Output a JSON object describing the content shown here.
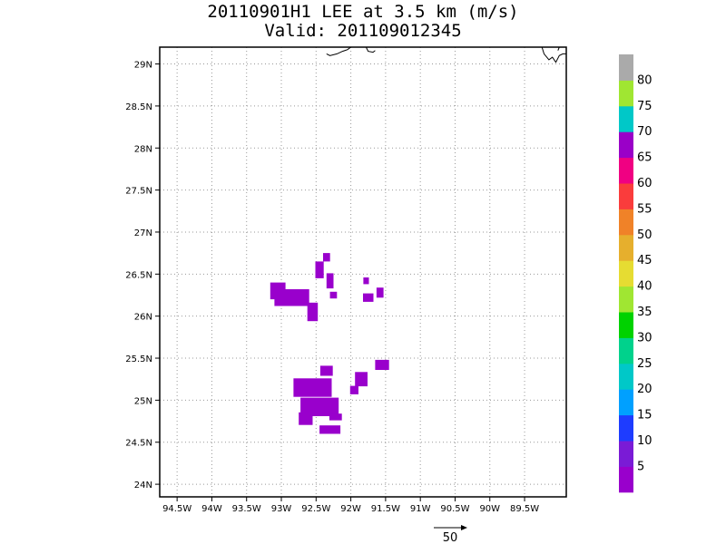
{
  "title": "20110901H1 LEE at 3.5 km (m/s)",
  "subtitle": "Valid: 201109012345",
  "map": {
    "lon_range": [
      -94.75,
      -88.9
    ],
    "lat_range": [
      23.85,
      29.2
    ],
    "x_ticks": [
      {
        "lon": -94.5,
        "label": "94.5W"
      },
      {
        "lon": -94,
        "label": "94W"
      },
      {
        "lon": -93.5,
        "label": "93.5W"
      },
      {
        "lon": -93,
        "label": "93W"
      },
      {
        "lon": -92.5,
        "label": "92.5W"
      },
      {
        "lon": -92,
        "label": "92W"
      },
      {
        "lon": -91.5,
        "label": "91.5W"
      },
      {
        "lon": -91,
        "label": "91W"
      },
      {
        "lon": -90.5,
        "label": "90.5W"
      },
      {
        "lon": -90,
        "label": "90W"
      },
      {
        "lon": -89.5,
        "label": "89.5W"
      }
    ],
    "y_ticks": [
      {
        "lat": 24,
        "label": "24N"
      },
      {
        "lat": 24.5,
        "label": "24.5N"
      },
      {
        "lat": 25,
        "label": "25N"
      },
      {
        "lat": 25.5,
        "label": "25.5N"
      },
      {
        "lat": 26,
        "label": "26N"
      },
      {
        "lat": 26.5,
        "label": "26.5N"
      },
      {
        "lat": 27,
        "label": "27N"
      },
      {
        "lat": 27.5,
        "label": "27.5N"
      },
      {
        "lat": 28,
        "label": "28N"
      },
      {
        "lat": 28.5,
        "label": "28.5N"
      },
      {
        "lat": 29,
        "label": "29N"
      }
    ],
    "grid": true,
    "coastline": [
      [
        [
          -92.0,
          29.2
        ],
        [
          -92.05,
          29.17
        ],
        [
          -92.12,
          29.15
        ],
        [
          -92.2,
          29.12
        ],
        [
          -92.3,
          29.1
        ],
        [
          -92.35,
          29.12
        ]
      ],
      [
        [
          -91.78,
          29.2
        ],
        [
          -91.75,
          29.15
        ],
        [
          -91.68,
          29.14
        ],
        [
          -91.65,
          29.16
        ]
      ],
      [
        [
          -89.25,
          29.2
        ],
        [
          -89.22,
          29.12
        ],
        [
          -89.15,
          29.05
        ],
        [
          -89.1,
          29.08
        ],
        [
          -89.05,
          29.02
        ],
        [
          -89.0,
          29.1
        ],
        [
          -88.95,
          29.12
        ],
        [
          -88.9,
          29.12
        ]
      ],
      [
        [
          -89.02,
          29.16
        ],
        [
          -89.0,
          29.2
        ]
      ]
    ],
    "wind_color": "#9900cc",
    "wind_regions": [
      {
        "lon": -93.05,
        "lat": 26.3,
        "w": 0.22,
        "h": 0.2
      },
      {
        "lon": -92.85,
        "lat": 26.22,
        "w": 0.5,
        "h": 0.2
      },
      {
        "lon": -92.55,
        "lat": 26.05,
        "w": 0.15,
        "h": 0.22
      },
      {
        "lon": -92.45,
        "lat": 26.55,
        "w": 0.12,
        "h": 0.2
      },
      {
        "lon": -92.3,
        "lat": 26.42,
        "w": 0.1,
        "h": 0.18
      },
      {
        "lon": -92.35,
        "lat": 26.7,
        "w": 0.1,
        "h": 0.1
      },
      {
        "lon": -92.25,
        "lat": 26.25,
        "w": 0.1,
        "h": 0.08
      },
      {
        "lon": -91.78,
        "lat": 26.42,
        "w": 0.08,
        "h": 0.08
      },
      {
        "lon": -91.75,
        "lat": 26.22,
        "w": 0.15,
        "h": 0.1
      },
      {
        "lon": -91.58,
        "lat": 26.28,
        "w": 0.1,
        "h": 0.12
      },
      {
        "lon": -92.35,
        "lat": 25.35,
        "w": 0.18,
        "h": 0.12
      },
      {
        "lon": -92.55,
        "lat": 25.15,
        "w": 0.55,
        "h": 0.22
      },
      {
        "lon": -92.45,
        "lat": 24.92,
        "w": 0.55,
        "h": 0.22
      },
      {
        "lon": -92.65,
        "lat": 24.78,
        "w": 0.2,
        "h": 0.15
      },
      {
        "lon": -92.3,
        "lat": 24.65,
        "w": 0.3,
        "h": 0.1
      },
      {
        "lon": -92.22,
        "lat": 24.8,
        "w": 0.18,
        "h": 0.08
      },
      {
        "lon": -91.95,
        "lat": 25.12,
        "w": 0.12,
        "h": 0.1
      },
      {
        "lon": -91.85,
        "lat": 25.25,
        "w": 0.18,
        "h": 0.17
      },
      {
        "lon": -91.55,
        "lat": 25.42,
        "w": 0.2,
        "h": 0.12
      }
    ]
  },
  "colorbar": {
    "colors": [
      "#9900cc",
      "#7a1bd6",
      "#1e3cff",
      "#00a0ff",
      "#00c8c8",
      "#00d28c",
      "#00d200",
      "#a0e632",
      "#e6dc32",
      "#e6af2d",
      "#f08228",
      "#fa3c3c",
      "#f00082",
      "#9a00c8",
      "#00c8c8",
      "#a0e632",
      "#aaaaaa"
    ],
    "labels": [
      "5",
      "10",
      "15",
      "20",
      "25",
      "30",
      "35",
      "40",
      "45",
      "50",
      "55",
      "60",
      "65",
      "70",
      "75",
      "80"
    ]
  },
  "vector_label": "50"
}
